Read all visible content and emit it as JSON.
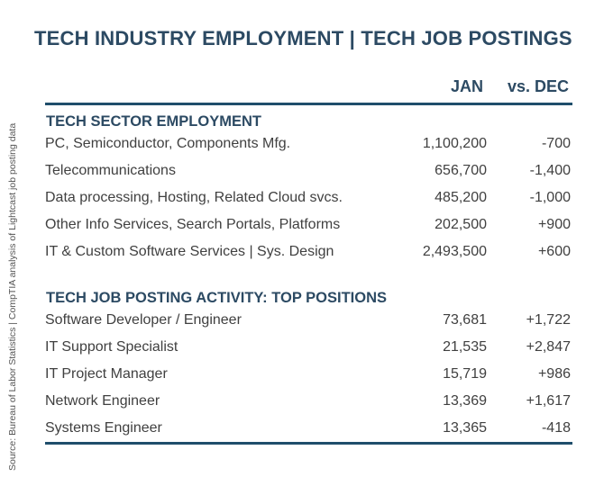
{
  "title": "TECH INDUSTRY EMPLOYMENT | TECH JOB POSTINGS",
  "source": "Source: Bureau of Labor Statistics | CompTIA analysis of Lightcast job posting data",
  "columns": {
    "jan": "JAN",
    "dec": "vs. DEC"
  },
  "sections": [
    {
      "title": "TECH SECTOR EMPLOYMENT",
      "rows": [
        {
          "label": "PC, Semiconductor, Components Mfg.",
          "jan": "1,100,200",
          "dec": "-700"
        },
        {
          "label": "Telecommunications",
          "jan": "656,700",
          "dec": "-1,400"
        },
        {
          "label": "Data processing, Hosting, Related Cloud svcs.",
          "jan": "485,200",
          "dec": "-1,000"
        },
        {
          "label": "Other Info Services, Search Portals, Platforms",
          "jan": "202,500",
          "dec": "+900"
        },
        {
          "label": "IT & Custom Software Services | Sys. Design",
          "jan": "2,493,500",
          "dec": "+600"
        }
      ]
    },
    {
      "title": "TECH JOB POSTING ACTIVITY: TOP POSITIONS",
      "rows": [
        {
          "label": "Software Developer / Engineer",
          "jan": "73,681",
          "dec": "+1,722"
        },
        {
          "label": "IT Support Specialist",
          "jan": "21,535",
          "dec": "+2,847"
        },
        {
          "label": "IT Project Manager",
          "jan": "15,719",
          "dec": "+986"
        },
        {
          "label": "Network Engineer",
          "jan": "13,369",
          "dec": "+1,617"
        },
        {
          "label": "Systems Engineer",
          "jan": "13,365",
          "dec": "-418"
        }
      ]
    }
  ]
}
